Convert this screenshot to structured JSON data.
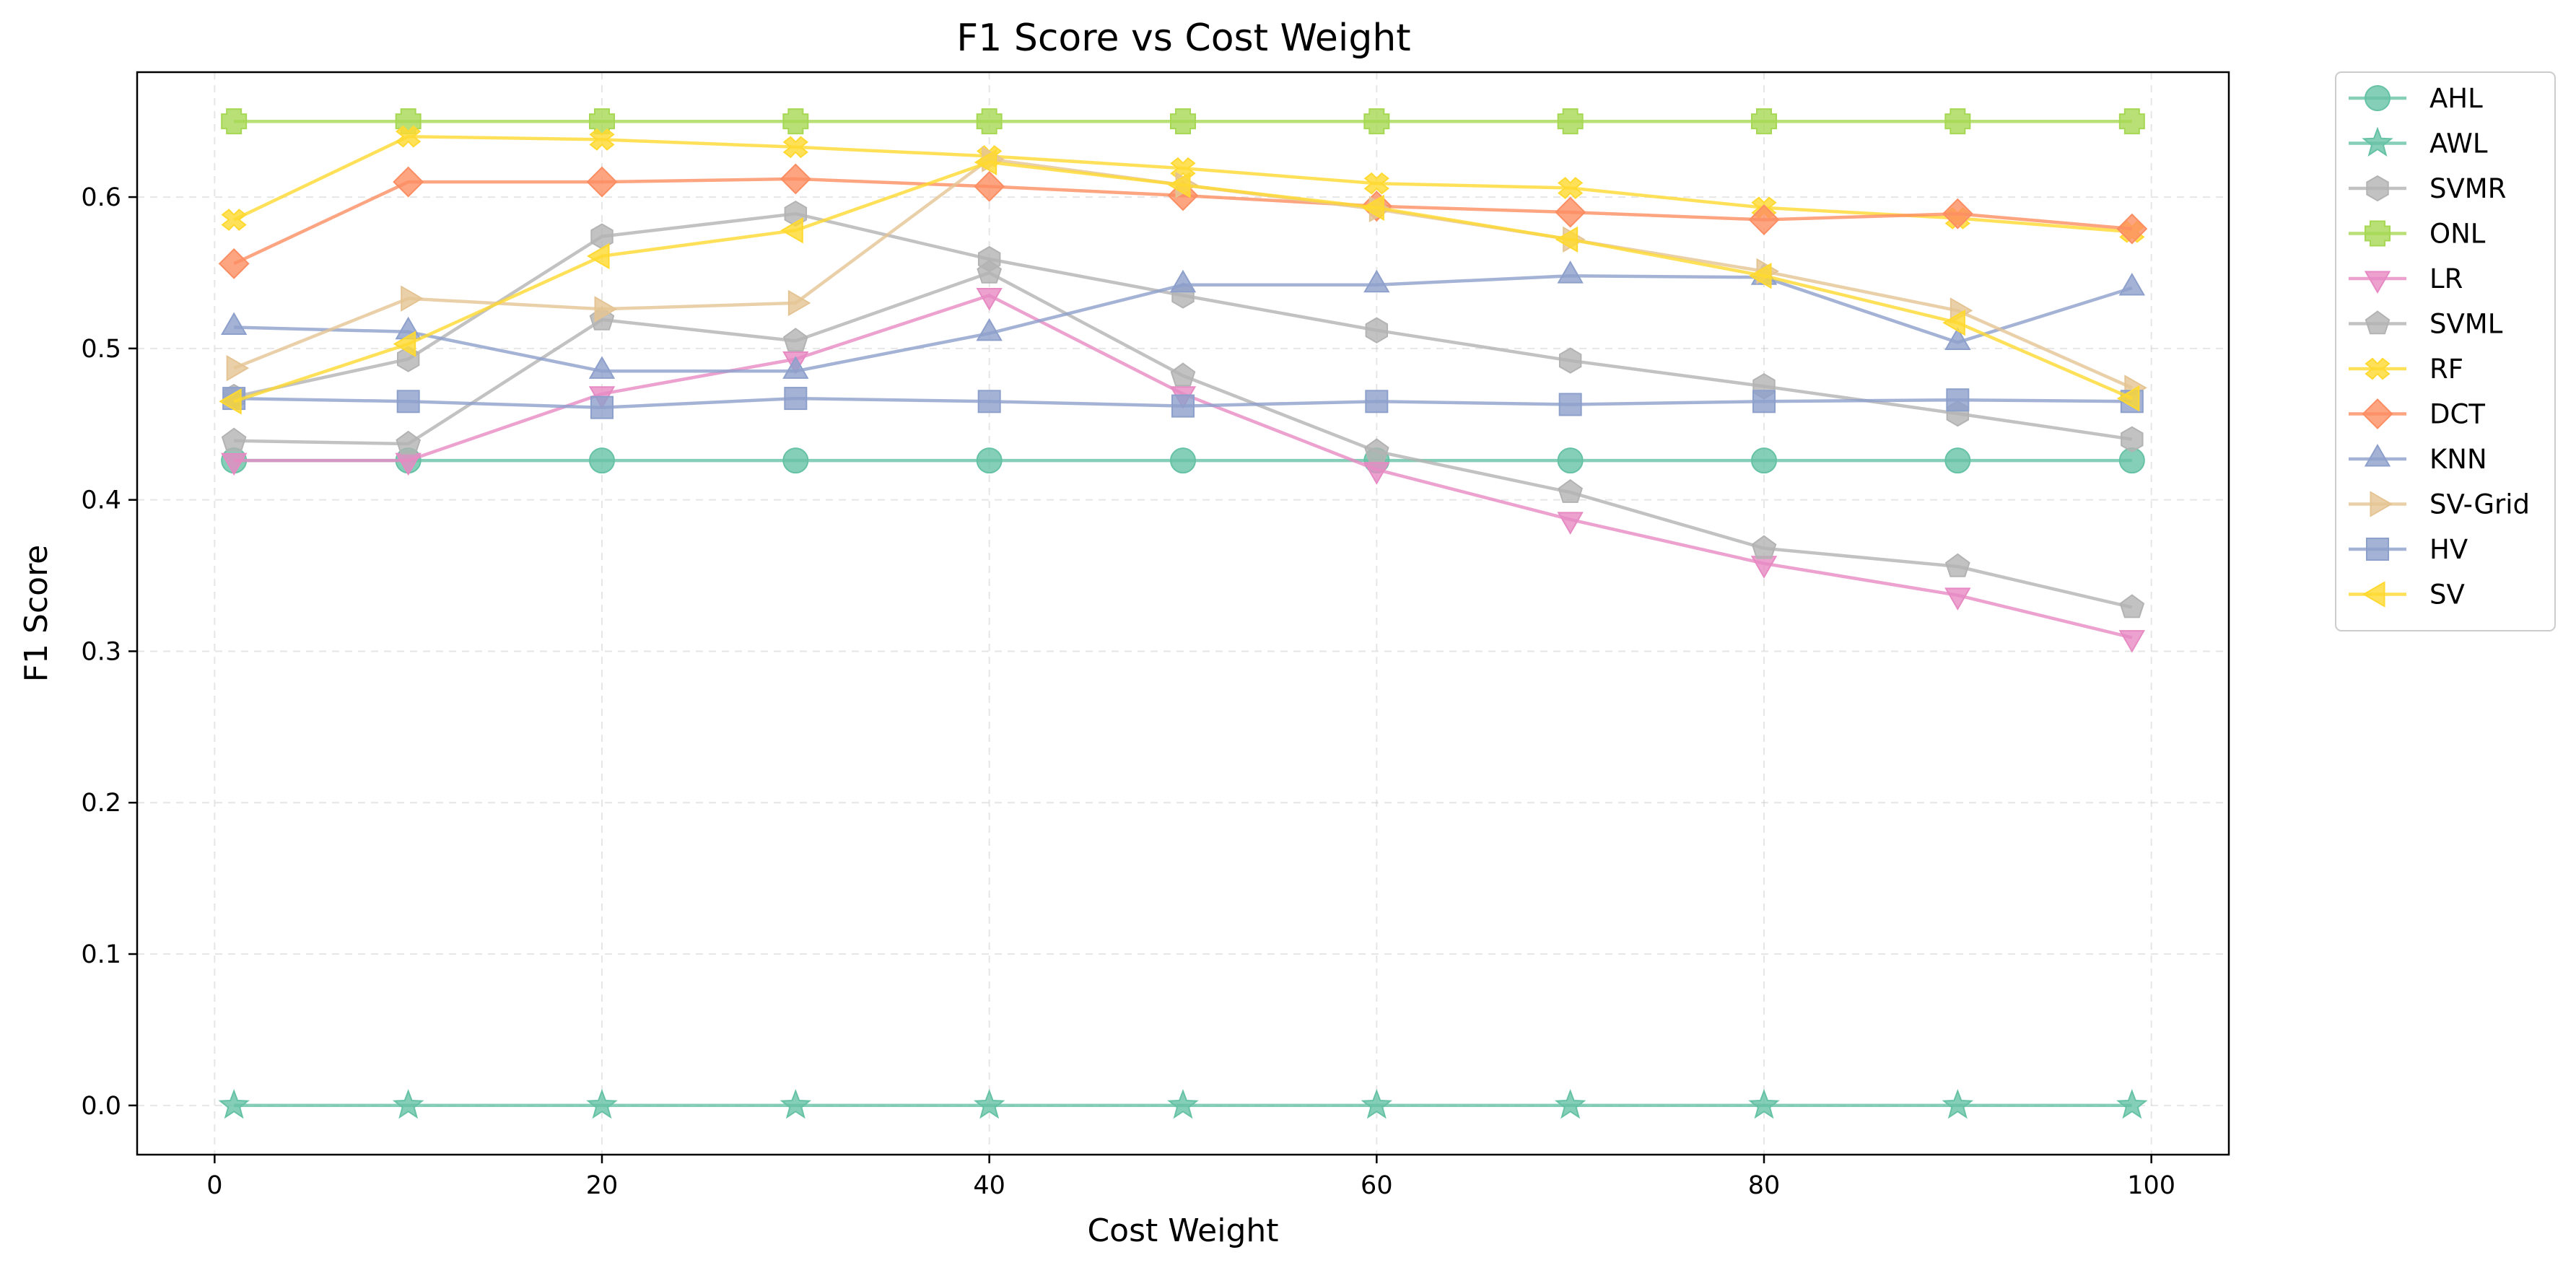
{
  "chart_data": {
    "type": "line",
    "title": "F1 Score vs Cost Weight",
    "xlabel": "Cost Weight",
    "ylabel": "F1 Score",
    "xlim": [
      -4,
      104
    ],
    "ylim": [
      -0.0325,
      0.6825
    ],
    "xticks": [
      0,
      20,
      40,
      60,
      80,
      100
    ],
    "yticks": [
      0.0,
      0.1,
      0.2,
      0.3,
      0.4,
      0.5,
      0.6
    ],
    "xtick_labels": [
      "0",
      "20",
      "40",
      "60",
      "80",
      "100"
    ],
    "ytick_labels": [
      "0.0",
      "0.1",
      "0.2",
      "0.3",
      "0.4",
      "0.5",
      "0.6"
    ],
    "grid": true,
    "legend_position": "outside-right",
    "x": [
      1,
      10,
      20,
      30,
      40,
      50,
      60,
      70,
      80,
      90,
      99
    ],
    "series": [
      {
        "name": "AHL",
        "color": "#66c2a5",
        "marker": "circle",
        "values": [
          0.426,
          0.426,
          0.426,
          0.426,
          0.426,
          0.426,
          0.426,
          0.426,
          0.426,
          0.426,
          0.426
        ]
      },
      {
        "name": "AWL",
        "color": "#66c2a5",
        "marker": "star",
        "values": [
          0.0,
          0.0,
          0.0,
          0.0,
          0.0,
          0.0,
          0.0,
          0.0,
          0.0,
          0.0,
          0.0
        ]
      },
      {
        "name": "SVMR",
        "color": "#b3b3b3",
        "marker": "hexagon",
        "values": [
          0.468,
          0.493,
          0.574,
          0.589,
          0.559,
          0.535,
          0.512,
          0.492,
          0.475,
          0.457,
          0.44
        ]
      },
      {
        "name": "ONL",
        "color": "#a6d854",
        "marker": "plus",
        "values": [
          0.65,
          0.65,
          0.65,
          0.65,
          0.65,
          0.65,
          0.65,
          0.65,
          0.65,
          0.65,
          0.65
        ]
      },
      {
        "name": "LR",
        "color": "#e78ac3",
        "marker": "triangle-down",
        "values": [
          0.426,
          0.426,
          0.47,
          0.493,
          0.535,
          0.47,
          0.42,
          0.387,
          0.358,
          0.337,
          0.309
        ]
      },
      {
        "name": "SVML",
        "color": "#b3b3b3",
        "marker": "pentagon",
        "values": [
          0.439,
          0.437,
          0.519,
          0.505,
          0.55,
          0.482,
          0.432,
          0.405,
          0.368,
          0.356,
          0.329
        ]
      },
      {
        "name": "RF",
        "color": "#ffd92f",
        "marker": "x",
        "values": [
          0.585,
          0.64,
          0.638,
          0.633,
          0.627,
          0.619,
          0.609,
          0.606,
          0.593,
          0.586,
          0.577
        ]
      },
      {
        "name": "DCT",
        "color": "#fc8d62",
        "marker": "diamond",
        "values": [
          0.556,
          0.61,
          0.61,
          0.612,
          0.607,
          0.601,
          0.594,
          0.59,
          0.585,
          0.589,
          0.579
        ]
      },
      {
        "name": "KNN",
        "color": "#8da0cb",
        "marker": "triangle-up",
        "values": [
          0.514,
          0.511,
          0.485,
          0.485,
          0.51,
          0.542,
          0.542,
          0.548,
          0.547,
          0.504,
          0.54
        ]
      },
      {
        "name": "SV-Grid",
        "color": "#e5c494",
        "marker": "triangle-right",
        "values": [
          0.487,
          0.533,
          0.526,
          0.53,
          0.625,
          0.608,
          0.592,
          0.572,
          0.551,
          0.525,
          0.474
        ]
      },
      {
        "name": "HV",
        "color": "#8da0cb",
        "marker": "square",
        "values": [
          0.467,
          0.465,
          0.461,
          0.467,
          0.465,
          0.462,
          0.465,
          0.463,
          0.465,
          0.466,
          0.465
        ]
      },
      {
        "name": "SV",
        "color": "#ffd92f",
        "marker": "triangle-left",
        "values": [
          0.465,
          0.503,
          0.561,
          0.578,
          0.623,
          0.608,
          0.593,
          0.572,
          0.548,
          0.517,
          0.467
        ]
      }
    ]
  }
}
